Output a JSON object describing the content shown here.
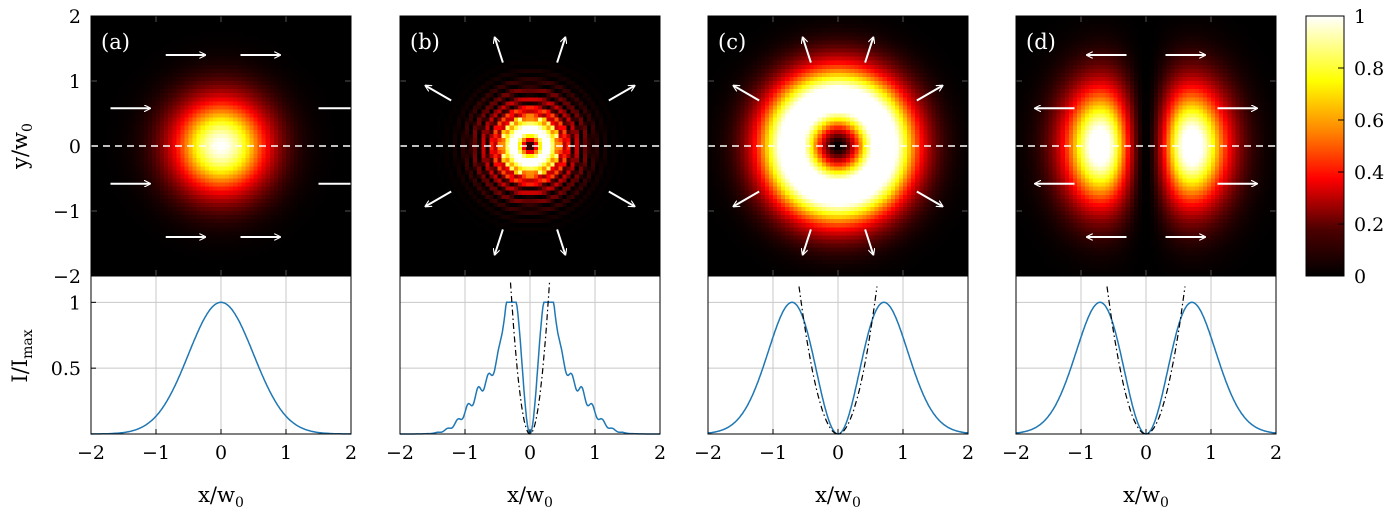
{
  "chart_data": [
    {
      "type": "heatmap",
      "panel_label": "(a)",
      "field": "gaussian",
      "arrows": "uniform",
      "xlim": [
        -2,
        2
      ],
      "ylim": [
        -2,
        2
      ],
      "yticks": [
        "−2",
        "−1",
        "0",
        "1",
        "2"
      ],
      "ylabel": "y/w₀",
      "ylabel_main": "y/w",
      "ylabel_sub": "0",
      "guide_line": "y = 0 (dashed)"
    },
    {
      "type": "heatmap",
      "panel_label": "(b)",
      "field": "ringed",
      "arrows": "radial",
      "xlim": [
        -2,
        2
      ],
      "ylim": [
        -2,
        2
      ]
    },
    {
      "type": "heatmap",
      "panel_label": "(c)",
      "field": "donut",
      "arrows": "radial",
      "xlim": [
        -2,
        2
      ],
      "ylim": [
        -2,
        2
      ]
    },
    {
      "type": "heatmap",
      "panel_label": "(d)",
      "field": "two-lobe",
      "arrows": "horizontal-outward",
      "xlim": [
        -2,
        2
      ],
      "ylim": [
        -2,
        2
      ]
    },
    {
      "type": "line",
      "panel": "(a) profile",
      "xlim": [
        -2,
        2
      ],
      "ylim": [
        0,
        1.2
      ],
      "xticks": [
        "−2",
        "−1",
        "0",
        "1",
        "2"
      ],
      "yticks": [
        "0.5",
        "1"
      ],
      "xlabel": "x/w₀",
      "xlabel_main": "x/w",
      "xlabel_sub": "0",
      "ylabel": "I/I_max",
      "ylabel_main": "I/I",
      "ylabel_sub": "max",
      "grid": true,
      "series": [
        {
          "profile": "gaussian",
          "color": "#1f77b4",
          "x": [
            -2,
            -1.5,
            -1,
            -0.5,
            0,
            0.5,
            1,
            1.5,
            2
          ],
          "y": [
            0.0,
            0.01,
            0.14,
            0.61,
            1.0,
            0.61,
            0.14,
            0.01,
            0.0
          ]
        }
      ]
    },
    {
      "type": "line",
      "panel": "(b) profile",
      "xlim": [
        -2,
        2
      ],
      "ylim": [
        0,
        1.2
      ],
      "xticks": [
        "−2",
        "−1",
        "0",
        "1",
        "2"
      ],
      "xlabel": "x/w₀",
      "xlabel_main": "x/w",
      "xlabel_sub": "0",
      "grid": true,
      "series": [
        {
          "profile": "ringed",
          "color": "#1f77b4",
          "x": [
            -2,
            -1.5,
            -1,
            -0.7,
            -0.5,
            -0.35,
            -0.2,
            0,
            0.2,
            0.35,
            0.5,
            0.7,
            1,
            1.5,
            2
          ],
          "y": [
            0.0,
            0.01,
            0.12,
            0.42,
            0.57,
            1.0,
            0.4,
            0.0,
            0.4,
            1.0,
            0.57,
            0.42,
            0.12,
            0.01,
            0.0
          ]
        },
        {
          "profile": "quadratic-fit",
          "color": "#000000",
          "dash": "dash-dot",
          "x": [
            -0.3,
            0,
            0.3
          ],
          "y": [
            1.15,
            0,
            1.15
          ]
        }
      ]
    },
    {
      "type": "line",
      "panel": "(c) profile",
      "xlim": [
        -2,
        2
      ],
      "ylim": [
        0,
        1.2
      ],
      "xticks": [
        "−2",
        "−1",
        "0",
        "1",
        "2"
      ],
      "xlabel": "x/w₀",
      "xlabel_main": "x/w",
      "xlabel_sub": "0",
      "grid": true,
      "series": [
        {
          "profile": "donut",
          "color": "#1f77b4",
          "x": [
            -2,
            -1.5,
            -1,
            -0.85,
            -0.5,
            0,
            0.5,
            0.85,
            1,
            1.5,
            2
          ],
          "y": [
            0.0,
            0.15,
            0.95,
            1.0,
            0.55,
            0.0,
            0.55,
            1.0,
            0.95,
            0.15,
            0.0
          ]
        },
        {
          "profile": "quadratic-fit",
          "color": "#000000",
          "dash": "dash-dot",
          "x": [
            -0.6,
            0,
            0.6
          ],
          "y": [
            1.12,
            0,
            1.12
          ]
        }
      ]
    },
    {
      "type": "line",
      "panel": "(d) profile",
      "xlim": [
        -2,
        2
      ],
      "ylim": [
        0,
        1.2
      ],
      "xticks": [
        "−2",
        "−1",
        "0",
        "1",
        "2"
      ],
      "xlabel": "x/w₀",
      "xlabel_main": "x/w",
      "xlabel_sub": "0",
      "grid": true,
      "series": [
        {
          "profile": "donut",
          "color": "#1f77b4",
          "x": [
            -2,
            -1.5,
            -1,
            -0.85,
            -0.5,
            0,
            0.5,
            0.85,
            1,
            1.5,
            2
          ],
          "y": [
            0.0,
            0.15,
            0.95,
            1.0,
            0.55,
            0.0,
            0.55,
            1.0,
            0.95,
            0.15,
            0.0
          ]
        },
        {
          "profile": "quadratic-fit",
          "color": "#000000",
          "dash": "dash-dot",
          "x": [
            -0.6,
            0,
            0.6
          ],
          "y": [
            1.12,
            0,
            1.12
          ]
        }
      ]
    }
  ],
  "colorbar": {
    "colormap": "hot",
    "range": [
      0,
      1
    ],
    "ticks": [
      "0",
      "0.2",
      "0.4",
      "0.6",
      "0.8",
      "1"
    ]
  },
  "colors": {
    "line": "#1f77b4",
    "grid": "#c8c8c8",
    "arrow": "#ffffff",
    "guide": "#ffffff"
  }
}
